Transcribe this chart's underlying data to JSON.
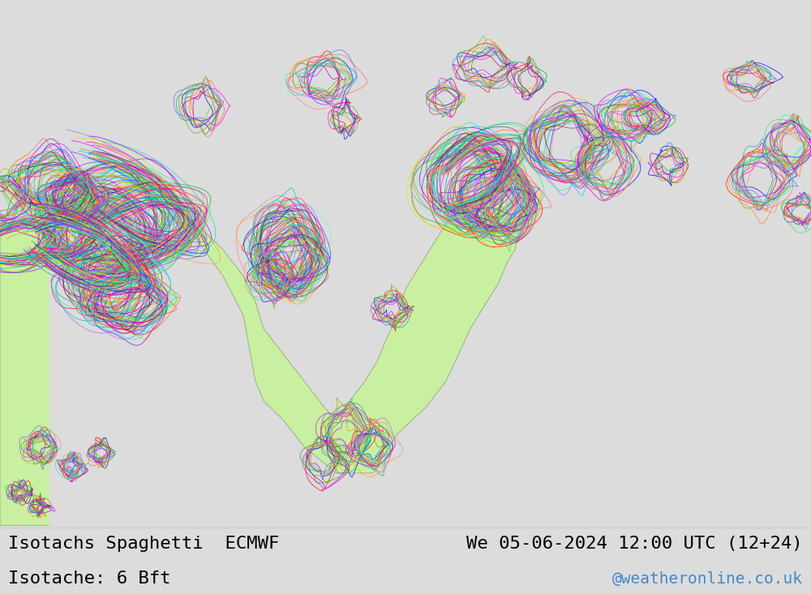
{
  "title_left": "Isotachs Spaghetti  ECMWF",
  "title_right": "We 05-06-2024 12:00 UTC (12+24)",
  "subtitle_left": "Isotache: 6 Bft",
  "subtitle_right": "@weatheronline.co.uk",
  "bg_color": "#dcdcdc",
  "land_color": "#c8f0a0",
  "water_color": "#dcdcdc",
  "border_color": "#7878a8",
  "coast_color": "#909090",
  "text_color": "#000000",
  "watermark_color": "#4488cc",
  "title_fontsize": 16,
  "subtitle_fontsize": 16,
  "watermark_fontsize": 14,
  "fig_width": 10.0,
  "fig_height": 7.33,
  "dpi": 100,
  "bottom_bar_height": 0.115,
  "member_colors": [
    "#ff0000",
    "#00bb00",
    "#0000ff",
    "#ff8800",
    "#aa00aa",
    "#00aaaa",
    "#ff00ff",
    "#999900",
    "#ff6666",
    "#44dd44",
    "#6666ff",
    "#ff8866",
    "#66ffaa",
    "#aa66ff",
    "#ffaa00",
    "#00ffaa",
    "#cc00ff",
    "#ff0077",
    "#00ddcc",
    "#8800ff",
    "#ffcc00",
    "#00ccff",
    "#ff00cc",
    "#aaff00",
    "#00ffcc",
    "#555555",
    "#333333",
    "#aaaaaa",
    "#ff4444",
    "#44ff44",
    "#4444ff",
    "#ff9944",
    "#bb00bb",
    "#00bbbb"
  ]
}
